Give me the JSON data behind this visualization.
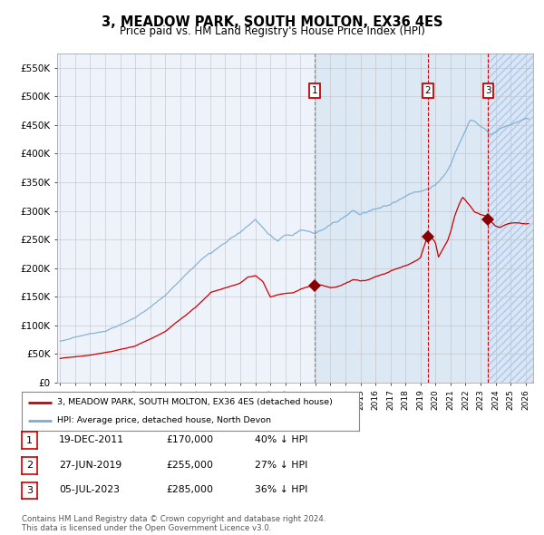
{
  "title": "3, MEADOW PARK, SOUTH MOLTON, EX36 4ES",
  "subtitle": "Price paid vs. HM Land Registry's House Price Index (HPI)",
  "legend_label_red": "3, MEADOW PARK, SOUTH MOLTON, EX36 4ES (detached house)",
  "legend_label_blue": "HPI: Average price, detached house, North Devon",
  "footer": "Contains HM Land Registry data © Crown copyright and database right 2024.\nThis data is licensed under the Open Government Licence v3.0.",
  "transactions": [
    {
      "num": 1,
      "date": "19-DEC-2011",
      "price": "£170,000",
      "pct": "40% ↓ HPI",
      "date_decimal": 2011.97,
      "price_val": 170000
    },
    {
      "num": 2,
      "date": "27-JUN-2019",
      "price": "£255,000",
      "pct": "27% ↓ HPI",
      "date_decimal": 2019.49,
      "price_val": 255000
    },
    {
      "num": 3,
      "date": "05-JUL-2023",
      "price": "£285,000",
      "pct": "36% ↓ HPI",
      "date_decimal": 2023.51,
      "price_val": 285000
    }
  ],
  "ylim": [
    0,
    575000
  ],
  "xlim_start": 1994.8,
  "xlim_end": 2026.5,
  "highlight_start": 2011.97,
  "hatch_start": 2023.51,
  "background_color": "#ffffff",
  "plot_bg_color": "#eef2fa",
  "highlight_color": "#dde8f5",
  "grid_color": "#bbbbbb",
  "red_color": "#cc0000",
  "blue_color": "#7aadd4",
  "title_fontsize": 11,
  "subtitle_fontsize": 9,
  "ytick_labels": [
    "£0",
    "£50K",
    "£100K",
    "£150K",
    "£200K",
    "£250K",
    "£300K",
    "£350K",
    "£400K",
    "£450K",
    "£500K",
    "£550K"
  ],
  "ytick_values": [
    0,
    50000,
    100000,
    150000,
    200000,
    250000,
    300000,
    350000,
    400000,
    450000,
    500000,
    550000
  ]
}
